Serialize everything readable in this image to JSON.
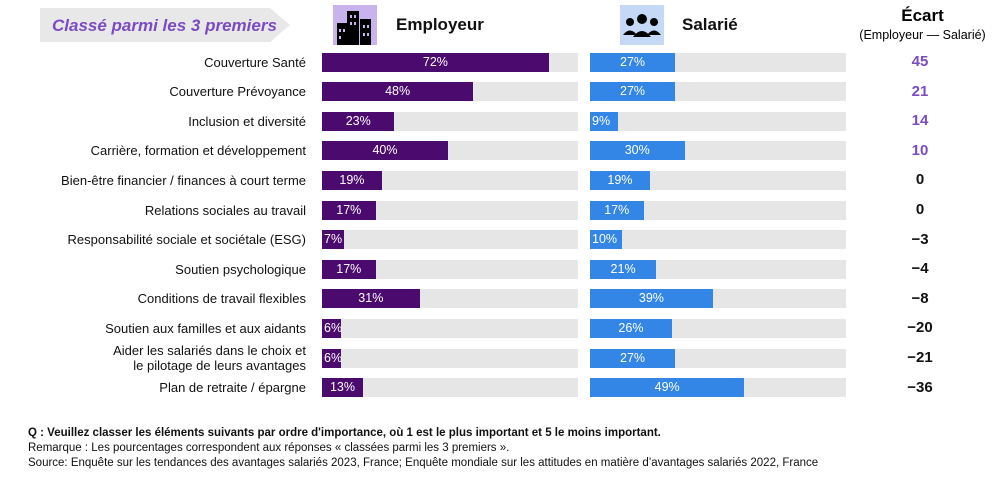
{
  "header": {
    "tag": "Classé parmi les 3 premiers",
    "employer": "Employeur",
    "employee": "Salarié",
    "gap_title": "Écart",
    "gap_subtitle": "(Employeur — Salarié)"
  },
  "colors": {
    "employer": "#4b0a6e",
    "employee": "#3386e6",
    "gap_positive": "#7b4bbf",
    "gap_other": "#111111",
    "track": "#e6e6e6"
  },
  "chart_data": {
    "type": "bar",
    "orientation": "horizontal",
    "categories": [
      "Couverture Santé",
      "Couverture Prévoyance",
      "Inclusion et diversité",
      "Carrière, formation et développement",
      "Bien-être financier / finances à court terme",
      "Relations sociales au travail",
      "Responsabilité sociale et sociétale (ESG)",
      "Soutien psychologique",
      "Conditions de travail flexibles",
      "Soutien aux familles et aux aidants",
      "Aider les salariés dans le choix et\nle pilotage de leurs avantages",
      "Plan de retraite / épargne"
    ],
    "series": [
      {
        "name": "Employeur",
        "values": [
          72,
          48,
          23,
          40,
          19,
          17,
          7,
          17,
          31,
          6,
          6,
          13
        ]
      },
      {
        "name": "Salarié",
        "values": [
          27,
          27,
          9,
          30,
          19,
          17,
          10,
          21,
          39,
          26,
          27,
          49
        ]
      }
    ],
    "gap": [
      45,
      21,
      14,
      10,
      0,
      0,
      -3,
      -4,
      -8,
      -20,
      -21,
      -36
    ],
    "unit": "%"
  },
  "footer": {
    "question": "Q : Veuillez classer les éléments suivants par ordre d'importance, où 1 est le plus important et 5 le moins important.",
    "note": "Remarque : Les pourcentages correspondent aux réponses « classées parmi les 3 premiers ».",
    "source": "Source: Enquête sur les tendances des avantages salariés 2023, France; Enquête mondiale sur les attitudes en matière d’avantages salariés 2022, France"
  }
}
